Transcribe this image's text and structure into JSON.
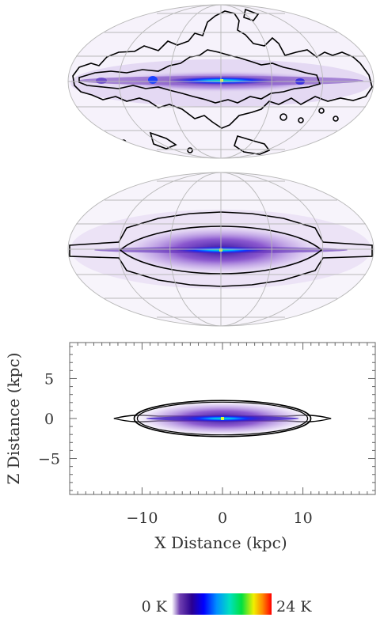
{
  "figure": {
    "panels": [
      {
        "panel": "top",
        "projection": "mollweide all-sky",
        "content": "observed emission map with contours"
      },
      {
        "panel": "middle",
        "projection": "mollweide all-sky",
        "content": "model emission map with contours"
      },
      {
        "panel": "bottom",
        "projection": "edge-on cartesian",
        "content": "model emission in the X-Z plane"
      }
    ]
  },
  "chart_data": [
    {
      "type": "heatmap",
      "panel": "top",
      "description_visible": "all-sky Mollweide map, emission concentrated along the Galactic plane with bright peak at the center; irregular black contours",
      "grid": true,
      "colorscale": "shared"
    },
    {
      "type": "heatmap",
      "panel": "middle",
      "description_visible": "all-sky Mollweide map, smooth lens-shaped emission along the plane with peak at the center; smooth nested black contours",
      "grid": true,
      "colorscale": "shared"
    },
    {
      "type": "heatmap",
      "panel": "bottom",
      "xlabel": "X Distance (kpc)",
      "ylabel": "Z Distance (kpc)",
      "xlim": [
        -19,
        19
      ],
      "ylim": [
        -9.5,
        9.5
      ],
      "xticks": [
        -10,
        0,
        10
      ],
      "yticks": [
        5,
        0,
        -5
      ],
      "xtick_labels": [
        "−10",
        "0",
        "10"
      ],
      "ytick_labels": [
        "5",
        "0",
        "−5"
      ],
      "emission_extent_x": [
        -10,
        10
      ],
      "emission_extent_z": [
        -2,
        2
      ],
      "peak_at": [
        0,
        0
      ]
    }
  ],
  "colorbar": {
    "min_label": "0 K",
    "max_label": "24 K",
    "min_value": 0,
    "max_value": 24,
    "unit": "K",
    "colors": [
      "#ffffff",
      "#2a0080",
      "#0000ff",
      "#00a0ff",
      "#00e080",
      "#ffff00",
      "#ff8000",
      "#ff0000"
    ]
  },
  "panel3": {
    "xlabel": "X Distance (kpc)",
    "ylabel": "Z Distance (kpc)"
  }
}
